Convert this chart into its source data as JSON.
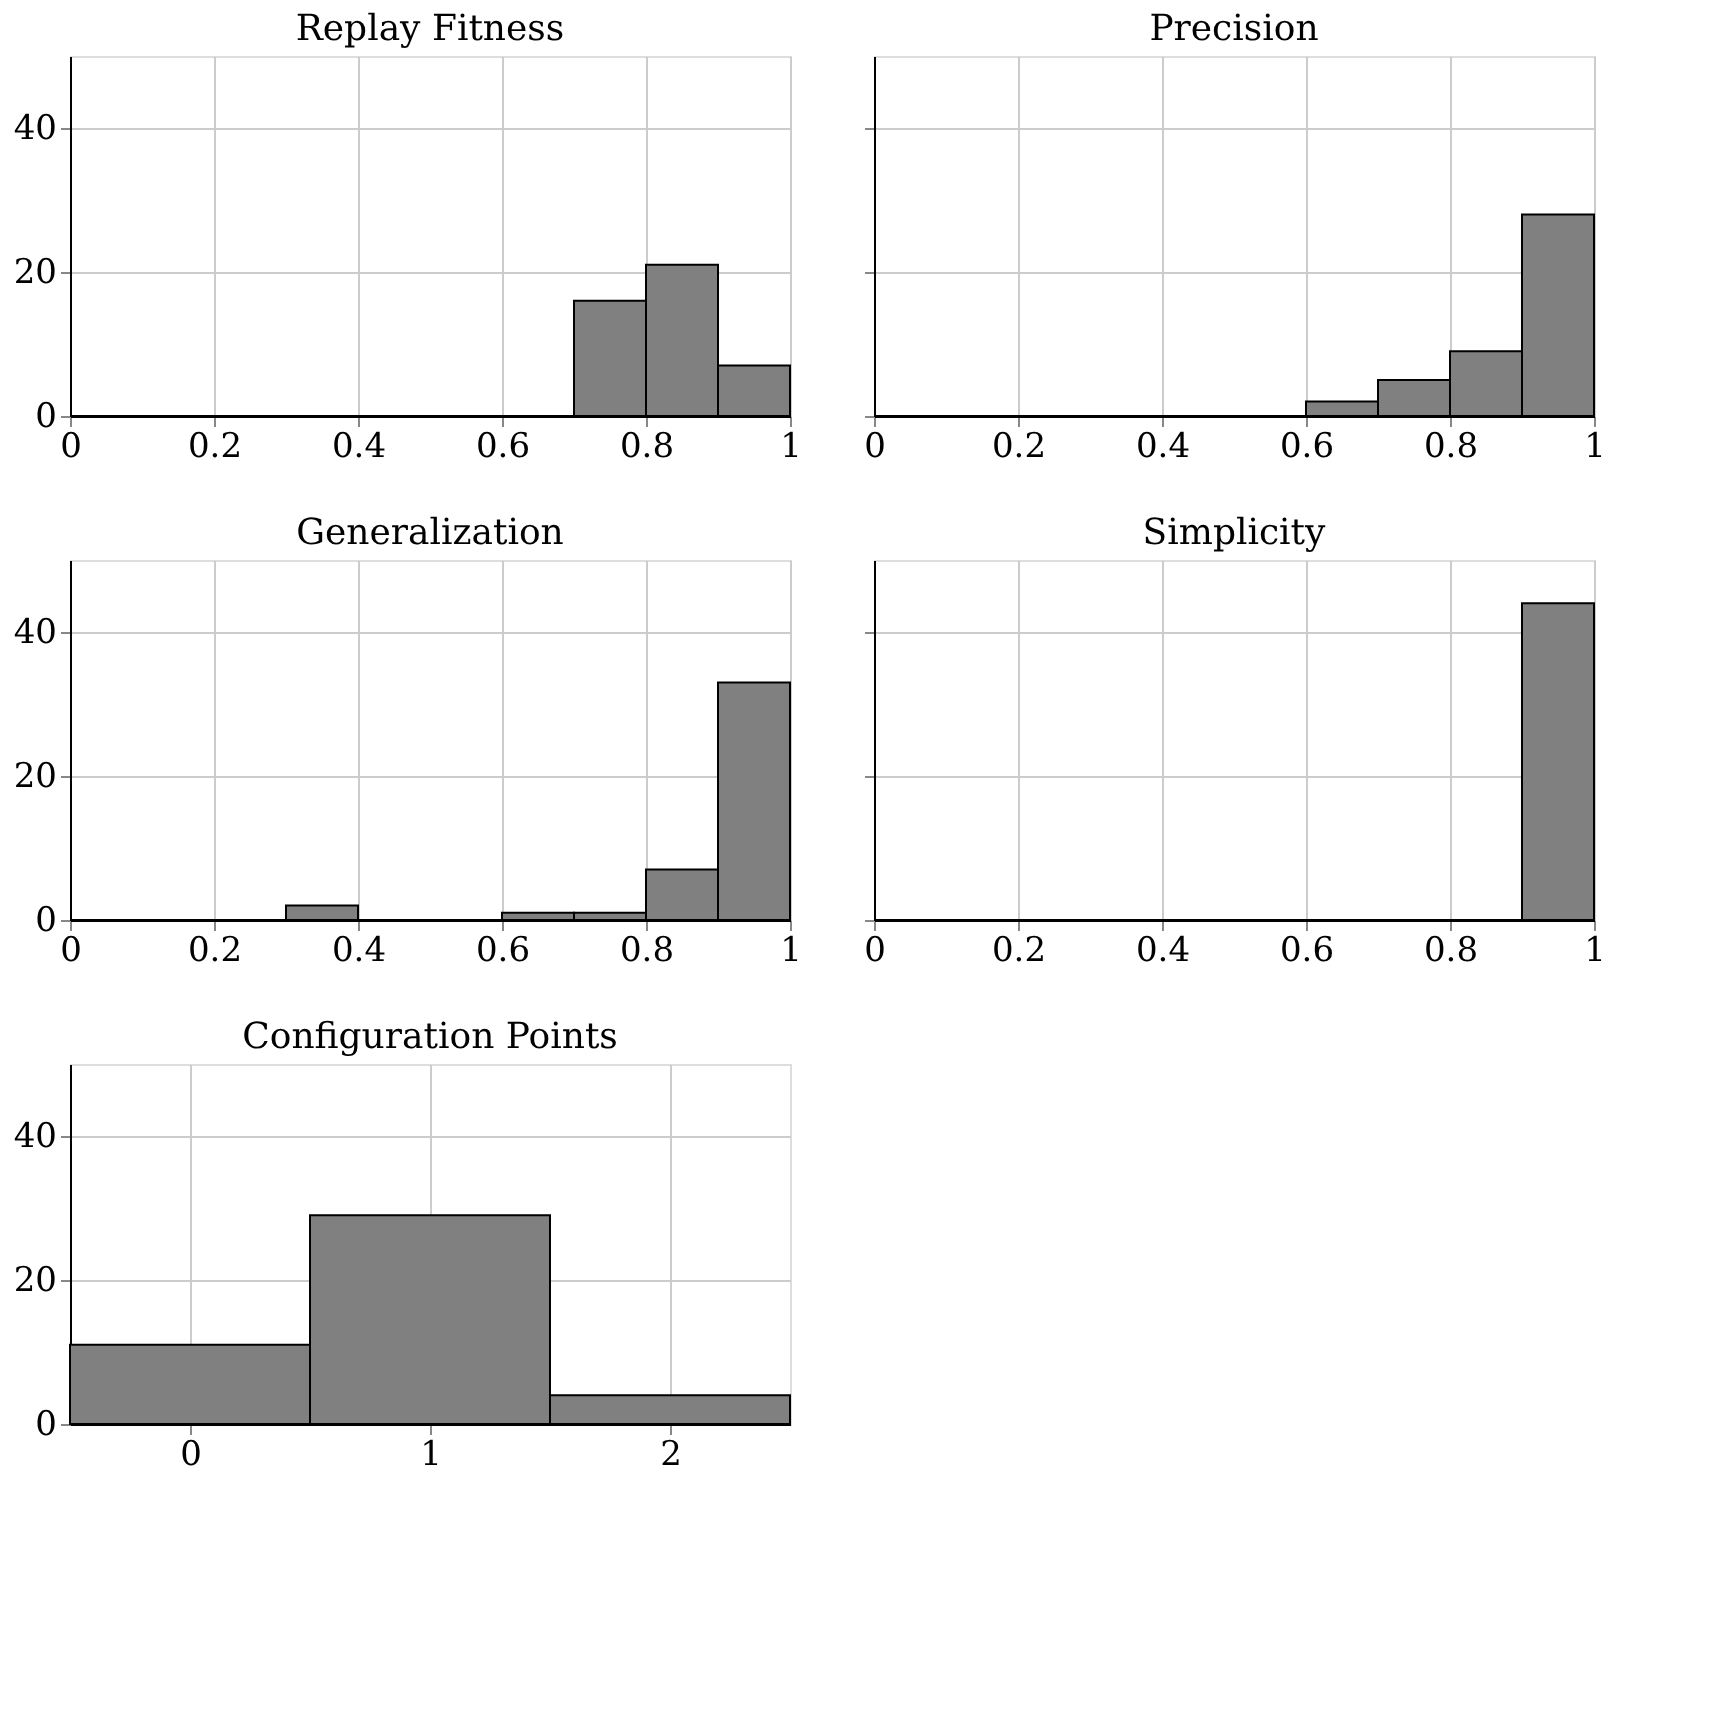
{
  "chart_data": [
    {
      "type": "histogram",
      "title": "Replay Fitness",
      "bins": [
        0,
        0.1,
        0.2,
        0.3,
        0.4,
        0.5,
        0.6,
        0.7,
        0.8,
        0.9,
        1
      ],
      "values": [
        0,
        0,
        0,
        0,
        0,
        0,
        0,
        16,
        21,
        7
      ],
      "color": "#808080",
      "xlim": [
        0,
        1
      ],
      "xticks": [
        0,
        0.2,
        0.4,
        0.6,
        0.8,
        1
      ],
      "ylim": [
        0,
        50
      ],
      "yticks": [
        0,
        20,
        40
      ],
      "grid": true
    },
    {
      "type": "histogram",
      "title": "Precision",
      "bins": [
        0,
        0.1,
        0.2,
        0.3,
        0.4,
        0.5,
        0.6,
        0.7,
        0.8,
        0.9,
        1
      ],
      "values": [
        0,
        0,
        0,
        0,
        0,
        0,
        2,
        5,
        9,
        28
      ],
      "color": "#808080",
      "xlim": [
        0,
        1
      ],
      "xticks": [
        0,
        0.2,
        0.4,
        0.6,
        0.8,
        1
      ],
      "ylim": [
        0,
        50
      ],
      "yticks": [
        0,
        20,
        40
      ],
      "grid": true,
      "tick_labels": "x"
    },
    {
      "type": "histogram",
      "title": "Generalization",
      "bins": [
        0,
        0.1,
        0.2,
        0.3,
        0.4,
        0.5,
        0.6,
        0.7,
        0.8,
        0.9,
        1
      ],
      "values": [
        0,
        0,
        0,
        2,
        0,
        0,
        1,
        1,
        7,
        33
      ],
      "color": "#808080",
      "xlim": [
        0,
        1
      ],
      "xticks": [
        0,
        0.2,
        0.4,
        0.6,
        0.8,
        1
      ],
      "ylim": [
        0,
        50
      ],
      "yticks": [
        0,
        20,
        40
      ],
      "grid": true
    },
    {
      "type": "histogram",
      "title": "Simplicity",
      "bins": [
        0,
        0.1,
        0.2,
        0.3,
        0.4,
        0.5,
        0.6,
        0.7,
        0.8,
        0.9,
        1
      ],
      "values": [
        0,
        0,
        0,
        0,
        0,
        0,
        0,
        0,
        0,
        44
      ],
      "color": "#808080",
      "xlim": [
        0,
        1
      ],
      "xticks": [
        0,
        0.2,
        0.4,
        0.6,
        0.8,
        1
      ],
      "ylim": [
        0,
        50
      ],
      "yticks": [
        0,
        20,
        40
      ],
      "grid": true,
      "tick_labels": "x"
    },
    {
      "type": "histogram",
      "title": "Configuration Points",
      "bins": [
        -0.5,
        0.5,
        1.5,
        2.5
      ],
      "values": [
        11,
        29,
        4
      ],
      "color": "#808080",
      "xlim": [
        -0.5,
        2.5
      ],
      "xticks": [
        0,
        1,
        2
      ],
      "ylim": [
        0,
        50
      ],
      "yticks": [
        0,
        20,
        40
      ],
      "grid": true
    }
  ]
}
